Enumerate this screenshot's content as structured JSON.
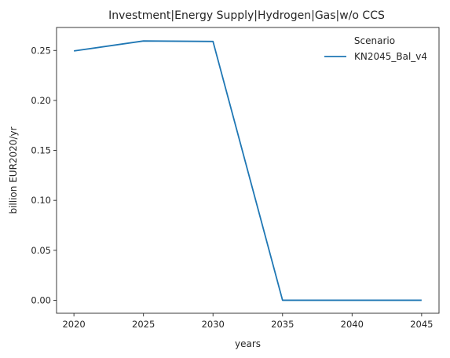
{
  "chart_data": {
    "type": "line",
    "title": "Investment|Energy Supply|Hydrogen|Gas|w/o CCS",
    "xlabel": "years",
    "ylabel": "billion EUR2020/yr",
    "x": [
      2020,
      2025,
      2030,
      2035,
      2040,
      2045
    ],
    "xlim": [
      2018.75,
      2046.25
    ],
    "ylim": [
      -0.013,
      0.273
    ],
    "x_ticks": [
      2020,
      2025,
      2030,
      2035,
      2040,
      2045
    ],
    "y_ticks": [
      0.0,
      0.05,
      0.1,
      0.15,
      0.2,
      0.25
    ],
    "y_tick_labels": [
      "0.00",
      "0.05",
      "0.10",
      "0.15",
      "0.20",
      "0.25"
    ],
    "grid": false,
    "legend": {
      "title": "Scenario",
      "placement": "top-right"
    },
    "series": [
      {
        "name": "KN2045_Bal_v4",
        "color": "#1f77b4",
        "values": [
          0.2495,
          0.2595,
          0.259,
          0.0,
          0.0,
          0.0
        ]
      }
    ]
  }
}
